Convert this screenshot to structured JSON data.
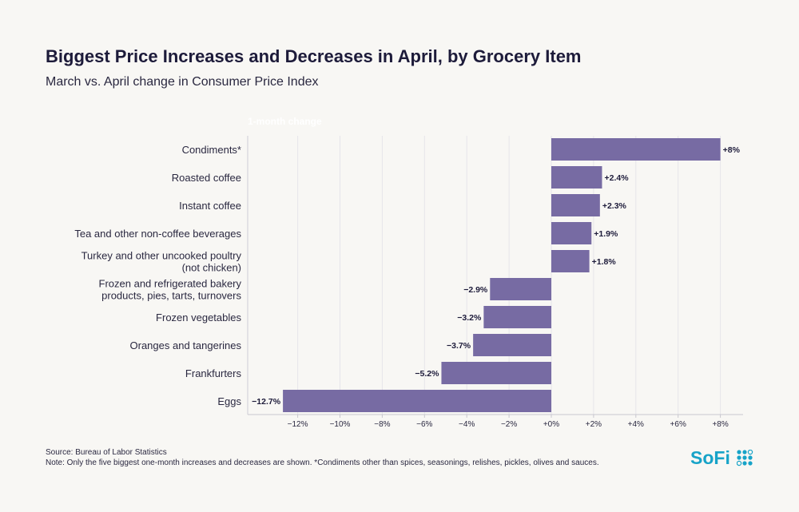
{
  "chart_data": {
    "type": "bar",
    "orientation": "horizontal",
    "title": "Biggest Price Increases and Decreases in April, by Grocery Item",
    "subtitle": "March vs. April change in Consumer Price Index",
    "xlabel": "1-month change",
    "categories": [
      [
        "Condiments*"
      ],
      [
        "Roasted coffee"
      ],
      [
        "Instant coffee"
      ],
      [
        "Tea and other non-coffee beverages"
      ],
      [
        "Turkey and other uncooked poultry",
        "(not chicken)"
      ],
      [
        "Frozen and refrigerated bakery",
        "products, pies, tarts, turnovers"
      ],
      [
        "Frozen vegetables"
      ],
      [
        "Oranges and tangerines"
      ],
      [
        "Frankfurters"
      ],
      [
        "Eggs"
      ]
    ],
    "values": [
      8,
      2.4,
      2.3,
      1.9,
      1.8,
      -2.9,
      -3.2,
      -3.7,
      -5.2,
      -12.7
    ],
    "data_labels": [
      "+8%",
      "+2.4%",
      "+2.3%",
      "+1.9%",
      "+1.8%",
      "-2.9%",
      "-3.2%",
      "-3.7%",
      "-5.2%",
      "-12.7%"
    ],
    "xticks": [
      -12,
      -10,
      -8,
      -6,
      -4,
      -2,
      0,
      2,
      4,
      6,
      8
    ],
    "xtick_labels": [
      "-12%",
      "-10%",
      "-8%",
      "-6%",
      "-4%",
      "-2%",
      "+0%",
      "+2%",
      "+4%",
      "+6%",
      "+8%"
    ],
    "xlim": [
      -14.4,
      9
    ],
    "grid": true,
    "bar_color": "#776ba3"
  },
  "source": "Source: Bureau of Labor Statistics",
  "note": "Note: Only the five biggest one-month increases and decreases are shown. *Condiments other than spices, seasonings, relishes, pickles, olives and sauces.",
  "logo": "SoFi"
}
